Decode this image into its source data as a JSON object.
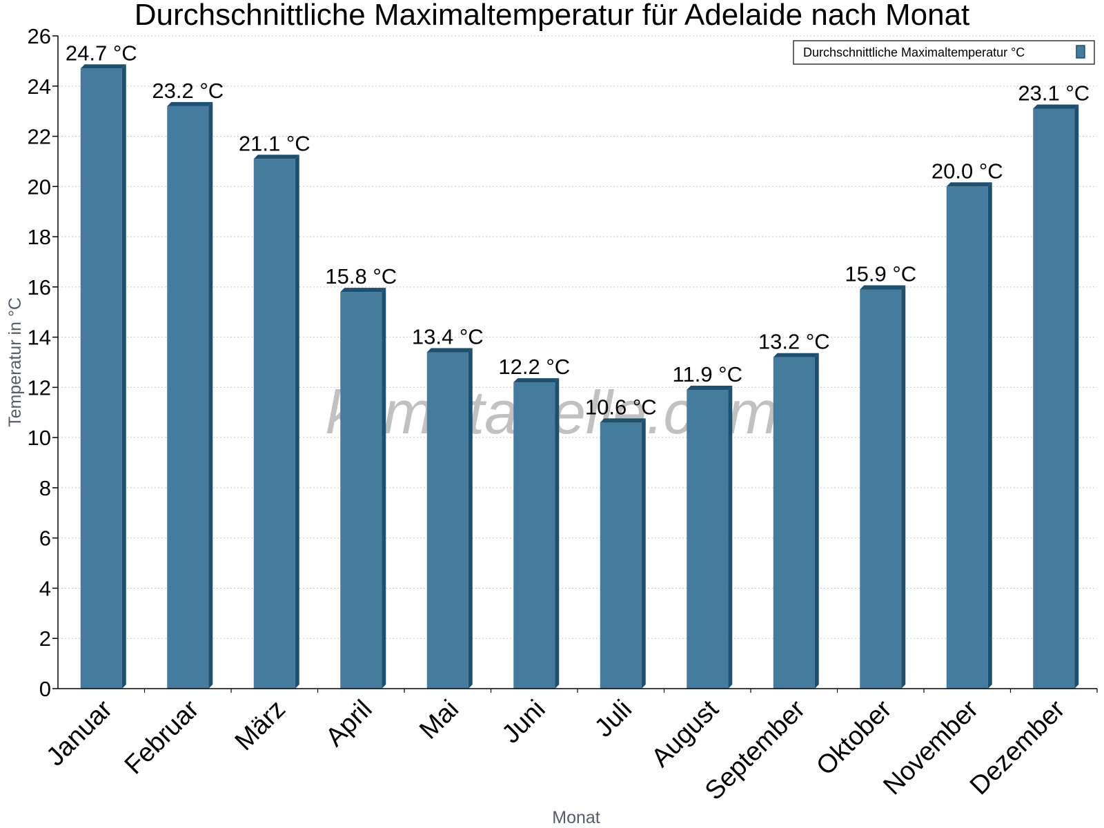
{
  "chart_data": {
    "type": "bar",
    "title": "Durchschnittliche Maximaltemperatur für Adelaide nach Monat",
    "xlabel": "Monat",
    "ylabel": "Temperatur in °C",
    "ylim": [
      0,
      26
    ],
    "yticks": [
      0,
      2,
      4,
      6,
      8,
      10,
      12,
      14,
      16,
      18,
      20,
      22,
      24,
      26
    ],
    "grid": "horizontal-dotted",
    "legend_position": "top-right",
    "categories": [
      "Januar",
      "Februar",
      "März",
      "April",
      "Mai",
      "Juni",
      "Juli",
      "August",
      "September",
      "Oktober",
      "November",
      "Dezember"
    ],
    "series": [
      {
        "name": "Durchschnittliche Maximaltemperatur °C",
        "color": "#457b9d",
        "edge_color": "#1d4f6e",
        "values": [
          24.7,
          23.2,
          21.1,
          15.8,
          13.4,
          12.2,
          10.6,
          11.9,
          13.2,
          15.9,
          20.0,
          23.1
        ],
        "labels": [
          "24.7 °C",
          "23.2 °C",
          "21.1 °C",
          "15.8 °C",
          "13.4 °C",
          "12.2 °C",
          "10.6 °C",
          "11.9 °C",
          "13.2 °C",
          "15.9 °C",
          "20.0 °C",
          "23.1 °C"
        ]
      }
    ],
    "watermark": "klimatabelle.com"
  }
}
